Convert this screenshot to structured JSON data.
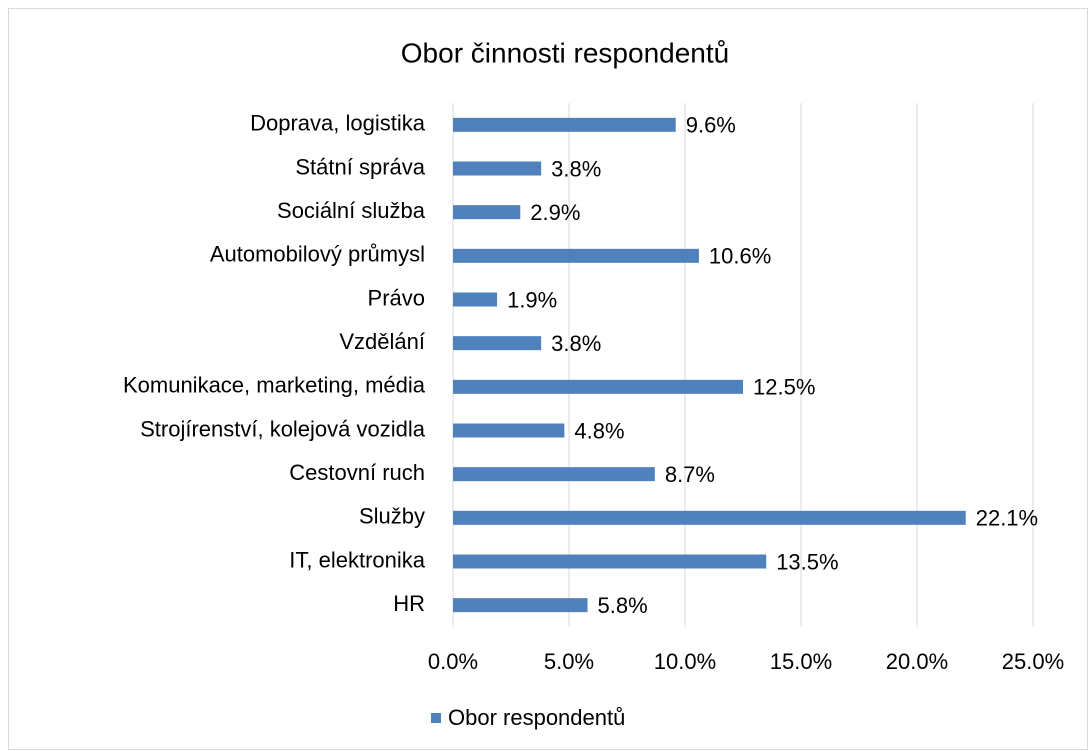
{
  "chart_data": {
    "type": "bar",
    "orientation": "horizontal",
    "title": "Obor činnosti respondentů",
    "categories": [
      "Doprava, logistika",
      "Státní správa",
      "Sociální služba",
      "Automobilový průmysl",
      "Právo",
      "Vzdělání",
      "Komunikace, marketing, média",
      "Strojírenství, kolejová vozidla",
      "Cestovní ruch",
      "Služby",
      "IT, elektronika",
      "HR"
    ],
    "series": [
      {
        "name": "Obor respondentů",
        "color": "#4f81bd",
        "values": [
          9.6,
          3.8,
          2.9,
          10.6,
          1.9,
          3.8,
          12.5,
          4.8,
          8.7,
          22.1,
          13.5,
          5.8
        ],
        "value_labels": [
          "9.6%",
          "3.8%",
          "2.9%",
          "10.6%",
          "1.9%",
          "3.8%",
          "12.5%",
          "4.8%",
          "8.7%",
          "22.1%",
          "13.5%",
          "5.8%"
        ]
      }
    ],
    "xlim": [
      0,
      25
    ],
    "xticks": [
      {
        "value": 0,
        "label": "0.0%"
      },
      {
        "value": 5,
        "label": "5.0%"
      },
      {
        "value": 10,
        "label": "10.0%"
      },
      {
        "value": 15,
        "label": "15.0%"
      },
      {
        "value": 20,
        "label": "20.0%"
      },
      {
        "value": 25,
        "label": "25.0%"
      }
    ],
    "grid": true,
    "legend": "bottom"
  }
}
